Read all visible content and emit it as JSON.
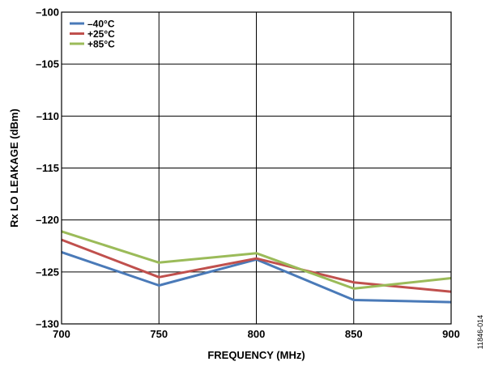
{
  "chart_data": {
    "type": "line",
    "title": "",
    "xlabel": "FREQUENCY (MHz)",
    "ylabel": "Rx LO LEAKAGE (dBm)",
    "xlim": [
      700,
      900
    ],
    "ylim": [
      -130,
      -100
    ],
    "x_ticks": [
      700,
      750,
      800,
      850,
      900
    ],
    "x_tick_labels": [
      "700",
      "750",
      "800",
      "850",
      "900"
    ],
    "y_ticks": [
      -100,
      -105,
      -110,
      -115,
      -120,
      -125,
      -130
    ],
    "y_tick_labels": [
      "–100",
      "–105",
      "–110",
      "–115",
      "–120",
      "–125",
      "–130"
    ],
    "grid": true,
    "legend_position": "top-left",
    "x": [
      700,
      750,
      800,
      850,
      900
    ],
    "series": [
      {
        "name": "–40°C",
        "color": "#4a7ab8",
        "values": [
          -123.1,
          -126.3,
          -123.8,
          -127.7,
          -127.9
        ]
      },
      {
        "name": "+25°C",
        "color": "#c0504d",
        "values": [
          -121.9,
          -125.5,
          -123.7,
          -126.0,
          -126.9
        ]
      },
      {
        "name": "+85°C",
        "color": "#9bbb59",
        "values": [
          -121.1,
          -124.1,
          -123.2,
          -126.6,
          -125.6
        ]
      }
    ],
    "figure_id": "11846-014"
  }
}
